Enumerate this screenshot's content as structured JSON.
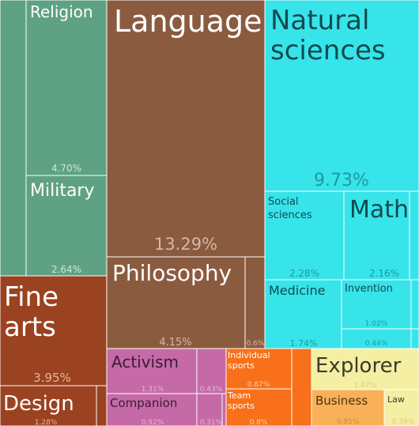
{
  "chart_data": {
    "type": "treemap",
    "title": "",
    "colors": {
      "teal": "#5fa283",
      "brown": "#8b5b40",
      "cyan": "#36e4ea",
      "rust": "#9b4220",
      "magenta": "#c56aa7",
      "orange": "#f87019",
      "yellow": "#f5efa4",
      "amber": "#f8b158"
    },
    "tiles": [
      {
        "label": "",
        "value": "",
        "color": "teal",
        "name": "tile-teal-unlabeled"
      },
      {
        "label": "Religion",
        "value": "4.70%",
        "color": "teal",
        "name": "tile-religion"
      },
      {
        "label": "Military",
        "value": "2.64%",
        "color": "teal",
        "name": "tile-military"
      },
      {
        "label": "Language",
        "value": "13.29%",
        "color": "brown",
        "name": "tile-language"
      },
      {
        "label": "Philosophy",
        "value": "4.15%",
        "color": "brown",
        "name": "tile-philosophy"
      },
      {
        "label": "",
        "value": "0.6%",
        "color": "brown",
        "name": "tile-brown-small"
      },
      {
        "label": "Natural sciences",
        "value": "9.73%",
        "color": "cyan",
        "name": "tile-natural-sciences"
      },
      {
        "label": "Social sciences",
        "value": "2.28%",
        "color": "cyan",
        "name": "tile-social-sciences"
      },
      {
        "label": "Math",
        "value": "2.16%",
        "color": "cyan",
        "name": "tile-math"
      },
      {
        "label": "",
        "value": "",
        "color": "cyan",
        "name": "tile-cyan-small-a"
      },
      {
        "label": "Medicine",
        "value": "1.74%",
        "color": "cyan",
        "name": "tile-medicine"
      },
      {
        "label": "Invention",
        "value": "1.02%",
        "color": "cyan",
        "name": "tile-invention"
      },
      {
        "label": "",
        "value": "0.44%",
        "color": "cyan",
        "name": "tile-cyan-small-b"
      },
      {
        "label": "",
        "value": "",
        "color": "cyan",
        "name": "tile-cyan-small-c"
      },
      {
        "label": "",
        "value": "",
        "color": "cyan",
        "name": "tile-cyan-small-d"
      },
      {
        "label": "Fine arts",
        "value": "3.95%",
        "color": "rust",
        "name": "tile-fine-arts"
      },
      {
        "label": "Design",
        "value": "1.28%",
        "color": "rust",
        "name": "tile-design"
      },
      {
        "label": "",
        "value": "",
        "color": "rust",
        "name": "tile-rust-small"
      },
      {
        "label": "Activism",
        "value": "1.31%",
        "color": "magenta",
        "name": "tile-activism"
      },
      {
        "label": "",
        "value": "0.43%",
        "color": "magenta",
        "name": "tile-magenta-small-a"
      },
      {
        "label": "Companion",
        "value": "0.92%",
        "color": "magenta",
        "name": "tile-companion"
      },
      {
        "label": "",
        "value": "0.31%",
        "color": "magenta",
        "name": "tile-magenta-small-b"
      },
      {
        "label": "",
        "value": "",
        "color": "magenta",
        "name": "tile-magenta-small-c"
      },
      {
        "label": "Individual sports",
        "value": "0.87%",
        "color": "orange",
        "name": "tile-individual-sports"
      },
      {
        "label": "Team sports",
        "value": "0.8%",
        "color": "orange",
        "name": "tile-team-sports"
      },
      {
        "label": "",
        "value": "",
        "color": "orange",
        "name": "tile-orange-small-a"
      },
      {
        "label": "",
        "value": "",
        "color": "orange",
        "name": "tile-orange-small-b"
      },
      {
        "label": "Explorer",
        "value": "1.47%",
        "color": "yellow",
        "name": "tile-explorer"
      },
      {
        "label": "Business",
        "value": "0.85%",
        "color": "amber",
        "name": "tile-business"
      },
      {
        "label": "Law",
        "value": "0.39%",
        "color": "yellow",
        "name": "tile-law"
      }
    ]
  }
}
